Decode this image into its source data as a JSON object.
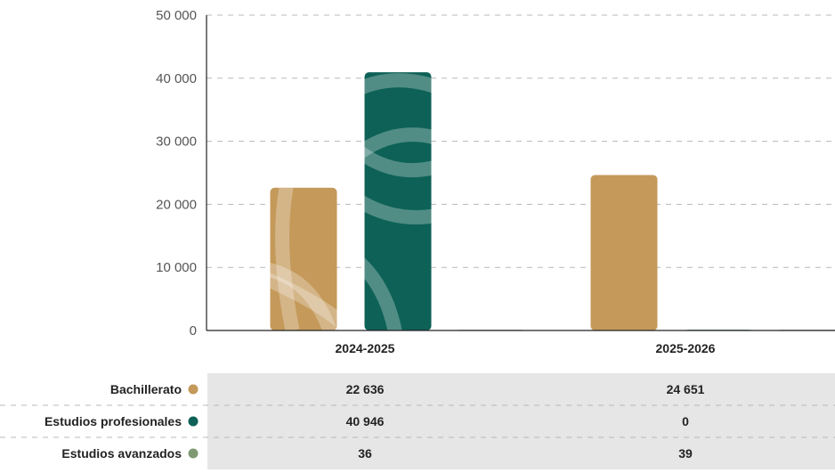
{
  "chart_data": {
    "type": "bar",
    "categories": [
      "2024-2025",
      "2025-2026"
    ],
    "series": [
      {
        "name": "Bachillerato",
        "values": [
          22636,
          24651
        ],
        "color": "#C4995A"
      },
      {
        "name": "Estudios profesionales",
        "values": [
          40946,
          0
        ],
        "color": "#0E6157"
      },
      {
        "name": "Estudios avanzados",
        "values": [
          36,
          39
        ],
        "color": "#7F9A73"
      }
    ],
    "ylim": [
      0,
      50000
    ],
    "yticks": [
      0,
      10000,
      20000,
      30000,
      40000,
      50000
    ],
    "ytick_labels": [
      "0",
      "10 000",
      "20 000",
      "30 000",
      "40 000",
      "50 000"
    ],
    "grid": true,
    "legend": "table below chart",
    "table": {
      "rows": [
        {
          "label": "Bachillerato",
          "values": [
            "22 636",
            "24 651"
          ]
        },
        {
          "label": "Estudios profesionales",
          "values": [
            "40 946",
            "0"
          ]
        },
        {
          "label": "Estudios avanzados",
          "values": [
            "36",
            "39"
          ]
        }
      ]
    },
    "xlabel": "",
    "ylabel": ""
  }
}
